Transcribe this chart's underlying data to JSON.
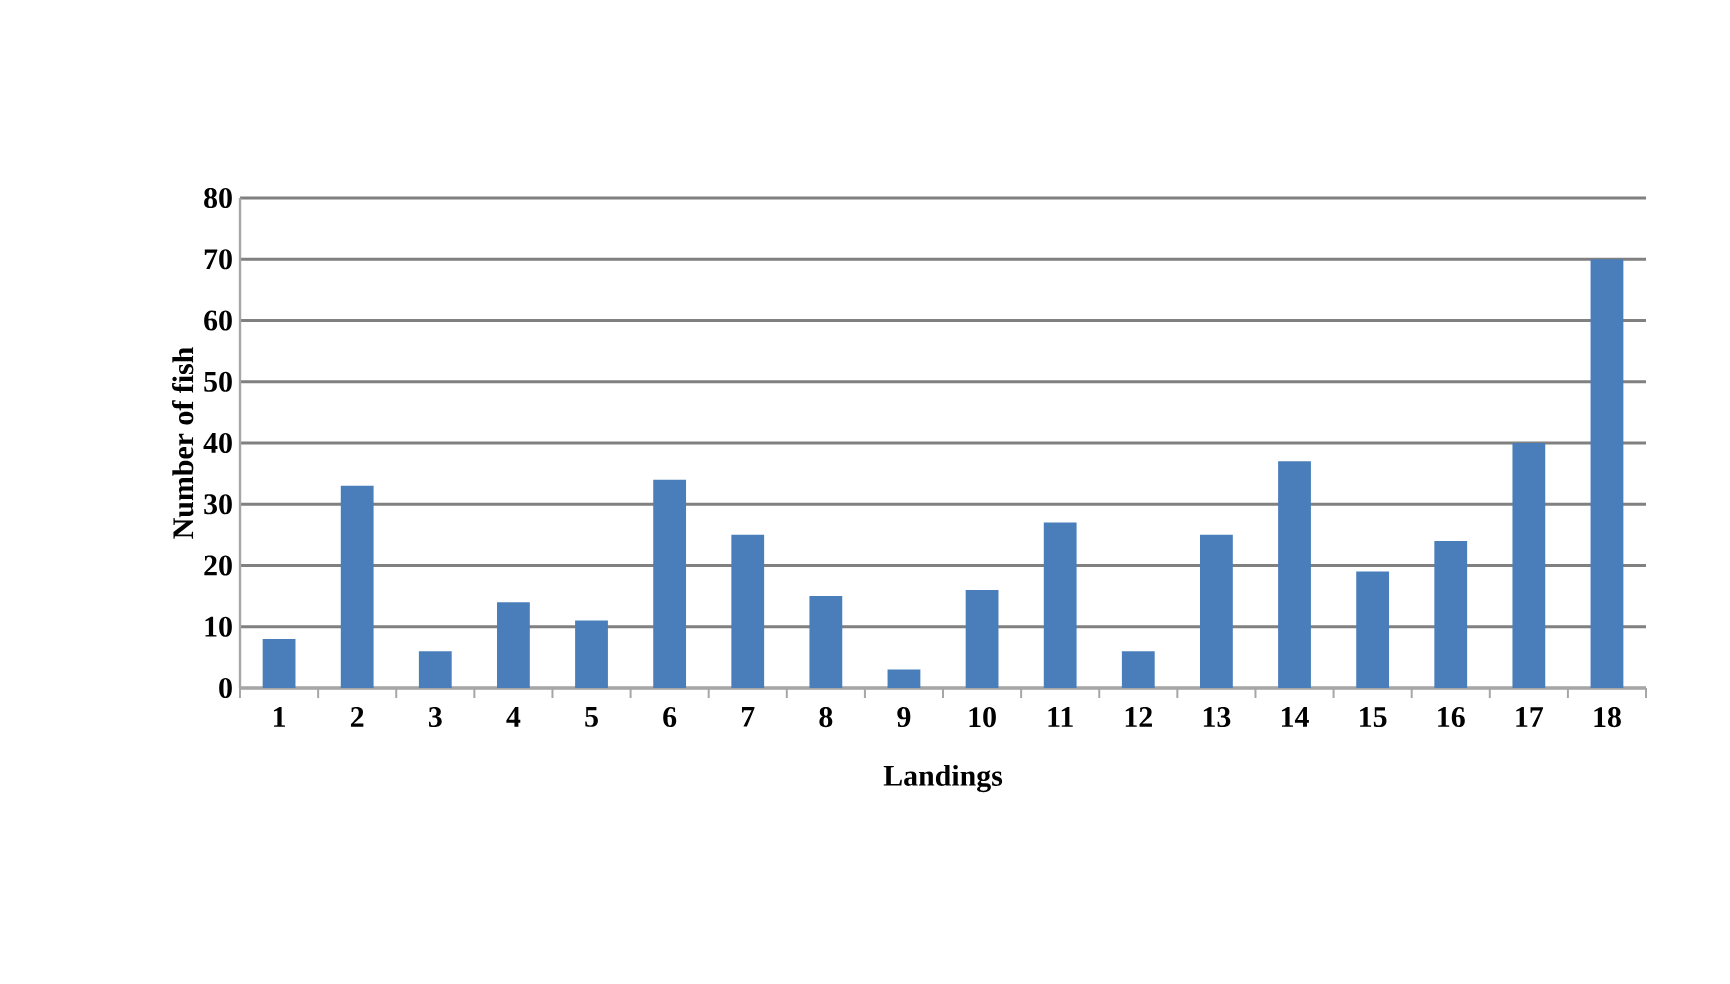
{
  "chart_data": {
    "type": "bar",
    "xlabel": "Landings",
    "ylabel": "Number of fish",
    "categories": [
      "1",
      "2",
      "3",
      "4",
      "5",
      "6",
      "7",
      "8",
      "9",
      "10",
      "11",
      "12",
      "13",
      "14",
      "15",
      "16",
      "17",
      "18"
    ],
    "values": [
      8,
      33,
      6,
      14,
      11,
      34,
      25,
      15,
      3,
      16,
      27,
      6,
      25,
      37,
      19,
      24,
      40,
      70
    ],
    "color": "#4a7ebb",
    "ylim": [
      0,
      80
    ],
    "yticks": [
      0,
      10,
      20,
      30,
      40,
      50,
      60,
      70,
      80
    ],
    "grid": "y"
  }
}
